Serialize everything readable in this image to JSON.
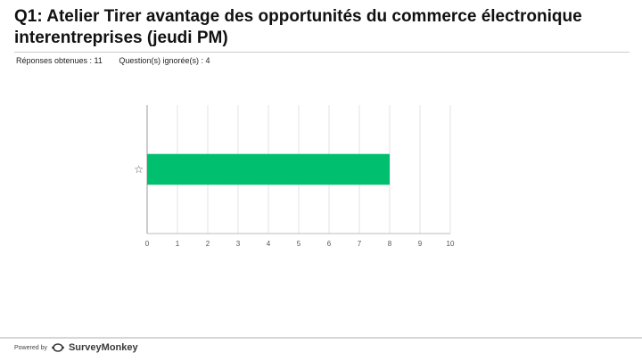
{
  "question": {
    "title": "Q1: Atelier Tirer avantage des opportunités du commerce électronique interentreprises (jeudi PM)",
    "answered": "Réponses obtenues : 11",
    "skipped": "Question(s) ignorée(s) : 4"
  },
  "footer": {
    "powered_by": "Powered by",
    "brand": "SurveyMonkey",
    "icon": "surveymonkey-logo-icon"
  },
  "colors": {
    "bar": "#00bf6f",
    "grid": "#e3e3e3",
    "axis": "#bbbbbb",
    "tick_text": "#555555"
  },
  "chart_data": {
    "type": "bar",
    "orientation": "horizontal",
    "categories": [
      "☆"
    ],
    "values": [
      8
    ],
    "xlim": [
      0,
      10
    ],
    "xticks": [
      0,
      1,
      2,
      3,
      4,
      5,
      6,
      7,
      8,
      9,
      10
    ],
    "grid": true,
    "title": "",
    "xlabel": "",
    "ylabel": ""
  }
}
